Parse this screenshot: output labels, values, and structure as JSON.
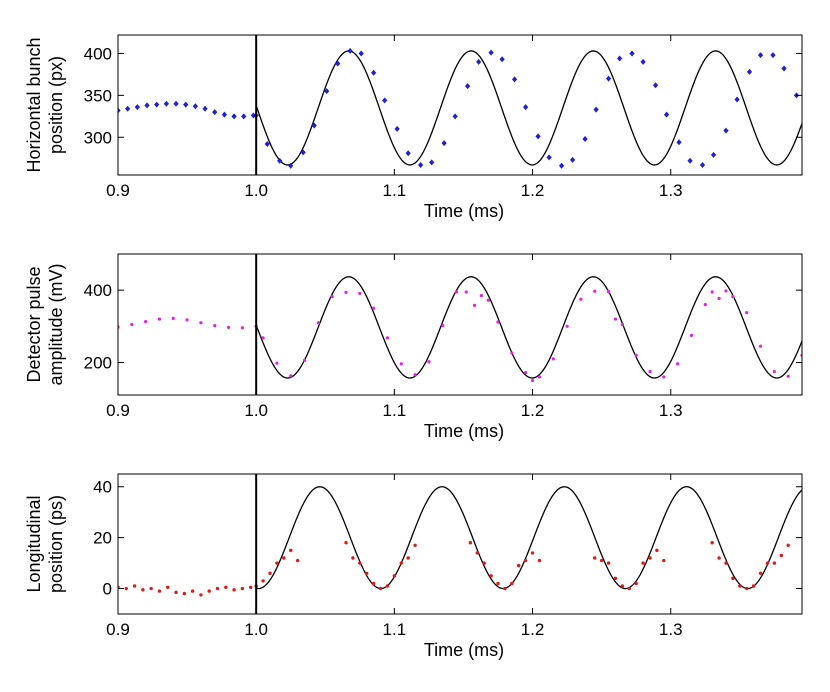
{
  "chart_data": [
    {
      "type": "scatter",
      "xlabel": "Time (ms)",
      "ylabel": [
        "Horizontal bunch",
        "position (px)"
      ],
      "xlim": [
        0.9,
        1.395
      ],
      "ylim": [
        255,
        422
      ],
      "xticks": [
        0.9,
        1.0,
        1.1,
        1.2,
        1.3
      ],
      "xtick_labels": [
        "0.9",
        "1.0",
        "1.1",
        "1.2",
        "1.3"
      ],
      "yticks": [
        300,
        350,
        400
      ],
      "ytick_labels": [
        "300",
        "350",
        "400"
      ],
      "vline_x": 1.0,
      "colors": {
        "points": "#1f1fd6",
        "model": "#000000"
      },
      "series": [
        {
          "name": "measured",
          "kind": "points",
          "x": [
            0.9,
            0.907,
            0.914,
            0.921,
            0.928,
            0.935,
            0.942,
            0.949,
            0.956,
            0.963,
            0.97,
            0.977,
            0.984,
            0.991,
            0.998,
            1.0,
            1.008,
            1.017,
            1.025,
            1.034,
            1.042,
            1.051,
            1.059,
            1.068,
            1.076,
            1.085,
            1.093,
            1.102,
            1.11,
            1.119,
            1.127,
            1.136,
            1.144,
            1.153,
            1.161,
            1.17,
            1.178,
            1.187,
            1.195,
            1.204,
            1.212,
            1.221,
            1.229,
            1.238,
            1.246,
            1.255,
            1.263,
            1.272,
            1.28,
            1.289,
            1.297,
            1.306,
            1.314,
            1.323,
            1.331,
            1.34,
            1.348,
            1.357,
            1.365,
            1.374,
            1.382,
            1.391
          ],
          "y": [
            332,
            334,
            336,
            338,
            339,
            340,
            340,
            339,
            337,
            334,
            330,
            327,
            325,
            325,
            326,
            326,
            292,
            272,
            266,
            282,
            314,
            355,
            388,
            403,
            400,
            377,
            344,
            310,
            281,
            267,
            270,
            293,
            325,
            361,
            390,
            401,
            393,
            369,
            336,
            301,
            276,
            266,
            273,
            298,
            333,
            370,
            394,
            400,
            390,
            362,
            327,
            294,
            272,
            267,
            279,
            308,
            345,
            378,
            398,
            398,
            382,
            350
          ]
        },
        {
          "name": "model",
          "kind": "line",
          "formula": "335 + 68*cos(2*pi*(t-1.067)/0.0885)"
        }
      ]
    },
    {
      "type": "scatter",
      "xlabel": "Time (ms)",
      "ylabel": [
        "Detector pulse",
        "amplitude (mV)"
      ],
      "xlim": [
        0.9,
        1.395
      ],
      "ylim": [
        110,
        500
      ],
      "xticks": [
        0.9,
        1.0,
        1.1,
        1.2,
        1.3
      ],
      "xtick_labels": [
        "0.9",
        "1.0",
        "1.1",
        "1.2",
        "1.3"
      ],
      "yticks": [
        200,
        400
      ],
      "ytick_labels": [
        "200",
        "400"
      ],
      "vline_x": 1.0,
      "colors": {
        "points": "#e81ee8",
        "model": "#000000"
      },
      "series": [
        {
          "name": "measured",
          "kind": "points",
          "x": [
            0.9,
            0.91,
            0.92,
            0.93,
            0.94,
            0.95,
            0.96,
            0.97,
            0.98,
            0.99,
            1.0,
            1.005,
            1.015,
            1.025,
            1.035,
            1.045,
            1.055,
            1.065,
            1.075,
            1.085,
            1.095,
            1.105,
            1.115,
            1.125,
            1.135,
            1.145,
            1.152,
            1.158,
            1.163,
            1.168,
            1.175,
            1.185,
            1.195,
            1.2,
            1.205,
            1.215,
            1.225,
            1.235,
            1.245,
            1.255,
            1.26,
            1.265,
            1.275,
            1.285,
            1.295,
            1.305,
            1.315,
            1.325,
            1.33,
            1.335,
            1.34,
            1.345,
            1.355,
            1.365,
            1.375,
            1.385,
            1.395
          ],
          "y": [
            298,
            305,
            313,
            320,
            322,
            318,
            310,
            302,
            297,
            296,
            300,
            268,
            198,
            163,
            206,
            310,
            382,
            394,
            391,
            350,
            268,
            196,
            166,
            202,
            302,
            395,
            395,
            358,
            385,
            372,
            312,
            226,
            172,
            150,
            160,
            210,
            300,
            375,
            397,
            396,
            320,
            305,
            220,
            175,
            160,
            196,
            275,
            360,
            395,
            377,
            398,
            382,
            338,
            245,
            175,
            162,
            220
          ]
        },
        {
          "name": "model",
          "kind": "line",
          "formula": "297 + 140*cos(2*pi*(t-1.067)/0.0885)"
        }
      ]
    },
    {
      "type": "scatter",
      "xlabel": "Time (ms)",
      "ylabel": [
        "Longitudinal",
        "position (ps)"
      ],
      "xlim": [
        0.9,
        1.395
      ],
      "ylim": [
        -10,
        45
      ],
      "xticks": [
        0.9,
        1.0,
        1.1,
        1.2,
        1.3
      ],
      "xtick_labels": [
        "0.9",
        "1.0",
        "1.1",
        "1.2",
        "1.3"
      ],
      "yticks": [
        0,
        20,
        40
      ],
      "ytick_labels": [
        "0",
        "20",
        "40"
      ],
      "vline_x": 1.0,
      "colors": {
        "points": "#e01818",
        "model": "#000000"
      },
      "series": [
        {
          "name": "measured",
          "kind": "points",
          "x": [
            0.9,
            0.906,
            0.912,
            0.918,
            0.924,
            0.93,
            0.936,
            0.942,
            0.948,
            0.954,
            0.96,
            0.966,
            0.972,
            0.978,
            0.984,
            0.99,
            0.996,
            1.0,
            1.005,
            1.01,
            1.015,
            1.02,
            1.025,
            1.03,
            1.065,
            1.07,
            1.075,
            1.08,
            1.085,
            1.09,
            1.095,
            1.1,
            1.105,
            1.11,
            1.115,
            1.155,
            1.16,
            1.165,
            1.17,
            1.175,
            1.18,
            1.185,
            1.19,
            1.195,
            1.2,
            1.205,
            1.245,
            1.25,
            1.255,
            1.26,
            1.265,
            1.27,
            1.275,
            1.28,
            1.285,
            1.29,
            1.295,
            1.33,
            1.335,
            1.34,
            1.345,
            1.35,
            1.355,
            1.36,
            1.365,
            1.37,
            1.375,
            1.38,
            1.385
          ],
          "y": [
            0.5,
            0,
            1,
            -0.5,
            0,
            -1,
            0.5,
            -1.5,
            -2,
            -1,
            -2.5,
            -1,
            0,
            0.5,
            -0.5,
            0,
            0.5,
            1,
            3,
            6,
            10,
            12,
            15,
            11,
            18,
            12,
            10,
            6,
            2,
            0,
            1,
            5,
            10,
            12,
            17,
            18,
            14,
            10,
            5,
            2,
            0,
            2,
            9,
            11,
            14,
            11,
            12,
            11,
            10,
            4,
            1,
            0,
            2,
            10,
            12,
            15,
            11,
            18,
            12,
            10,
            4,
            1,
            0,
            1,
            6,
            10,
            10,
            13,
            17
          ]
        },
        {
          "name": "model",
          "kind": "line",
          "formula": "20 + 20*cos(2*pi*(t-1.046)/0.0885)"
        }
      ]
    }
  ]
}
